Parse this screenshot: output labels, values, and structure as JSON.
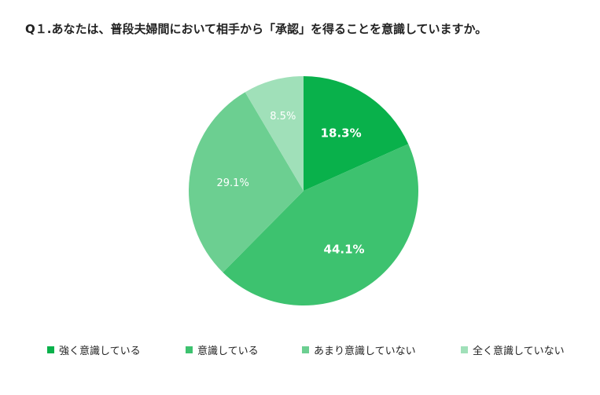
{
  "title": "Q１.あなたは、普段夫婦間において相手から「承認」を得ることを意識していますか。",
  "chart_data": {
    "type": "pie",
    "categories": [
      "強く意識している",
      "意識している",
      "あまり意識していない",
      "全く意識していない"
    ],
    "values": [
      18.3,
      44.1,
      29.1,
      8.5
    ],
    "labels": [
      "18.3%",
      "44.1%",
      "29.1%",
      "8.5%"
    ],
    "colors": [
      "#09b14b",
      "#3dc26f",
      "#6ccf91",
      "#a0e0b9"
    ],
    "start": "12 o'clock",
    "direction": "clockwise",
    "legend_position": "bottom"
  }
}
